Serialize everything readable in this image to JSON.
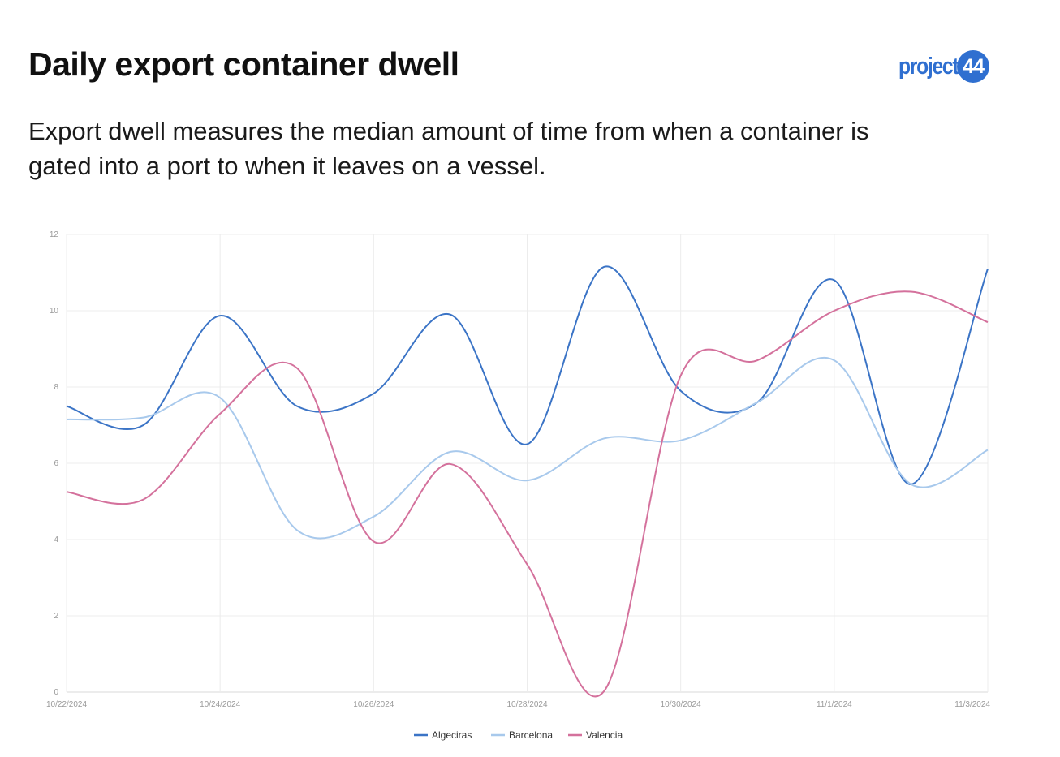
{
  "header": {
    "title": "Daily export container dwell",
    "subtitle": "Export dwell measures the median amount of time from when a container is gated into a port to when it leaves on a vessel.",
    "logo_text": "project44"
  },
  "chart_data": {
    "type": "line",
    "title": "",
    "xlabel": "",
    "ylabel": "",
    "x": [
      "10/22/2024",
      "10/23/2024",
      "10/24/2024",
      "10/25/2024",
      "10/26/2024",
      "10/27/2024",
      "10/28/2024",
      "10/29/2024",
      "10/30/2024",
      "10/31/2024",
      "11/1/2024",
      "11/2/2024",
      "11/3/2024"
    ],
    "x_tick_labels": [
      "10/22/2024",
      "10/24/2024",
      "10/26/2024",
      "10/28/2024",
      "10/30/2024",
      "11/1/2024",
      "11/3/2024"
    ],
    "y_ticks": [
      0,
      2,
      4,
      6,
      8,
      10,
      12
    ],
    "ylim": [
      0,
      12
    ],
    "grid": true,
    "smooth": true,
    "legend_position": "bottom",
    "series": [
      {
        "name": "Algeciras",
        "color": "#3b74c6",
        "values": [
          7.5,
          7.0,
          9.87,
          7.5,
          7.83,
          9.9,
          6.5,
          11.15,
          7.9,
          7.6,
          10.8,
          5.45,
          11.1
        ]
      },
      {
        "name": "Barcelona",
        "color": "#a8c9ec",
        "values": [
          7.15,
          7.2,
          7.72,
          4.25,
          4.6,
          6.3,
          5.55,
          6.65,
          6.6,
          7.6,
          8.7,
          5.45,
          6.35
        ]
      },
      {
        "name": "Valencia",
        "color": "#d4719c",
        "values": [
          5.25,
          5.05,
          7.3,
          8.5,
          3.95,
          5.98,
          3.35,
          0.02,
          8.3,
          8.7,
          10.0,
          10.5,
          9.7
        ]
      }
    ]
  }
}
